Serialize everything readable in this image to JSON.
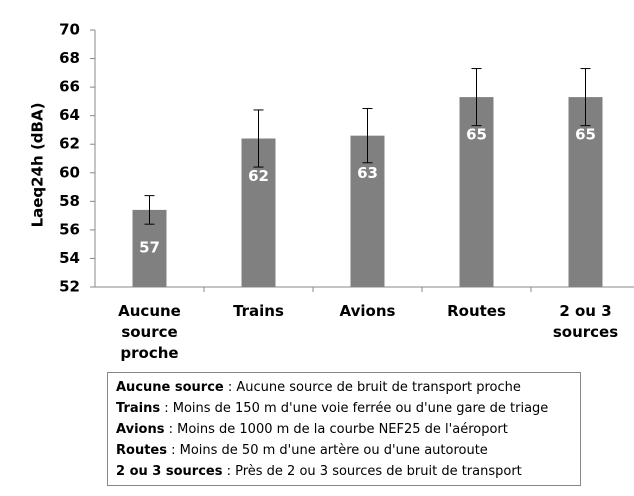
{
  "chart_data": {
    "type": "bar",
    "ylabel": "Laeq24h (dBA)",
    "categories": [
      "Aucune source proche",
      "Trains",
      "Avions",
      "Routes",
      "2 ou 3 sources"
    ],
    "values": [
      57.4,
      62.4,
      62.6,
      65.3,
      65.3
    ],
    "value_labels": [
      "57",
      "62",
      "63",
      "65",
      "65"
    ],
    "errors": [
      1.0,
      2.0,
      1.9,
      2.0,
      2.0
    ],
    "color": "#808080",
    "ylim": [
      52,
      70
    ],
    "yticks": [
      52,
      54,
      56,
      58,
      60,
      62,
      64,
      66,
      68,
      70
    ],
    "grid": false,
    "legend_notes": [
      {
        "term": "Aucune source",
        "text": ": Aucune source de bruit de transport proche"
      },
      {
        "term": "Trains",
        "text": ": Moins de 150 m d'une voie ferrée ou d'une gare de triage"
      },
      {
        "term": "Avions",
        "text": ": Moins de 1000 m de la courbe NEF25 de l'aéroport"
      },
      {
        "term": "Routes",
        "text": ": Moins de 50 m d'une artère ou d'une autoroute"
      },
      {
        "term": "2 ou 3 sources",
        "text": ": Près de 2 ou 3 sources de bruit de transport"
      }
    ]
  }
}
